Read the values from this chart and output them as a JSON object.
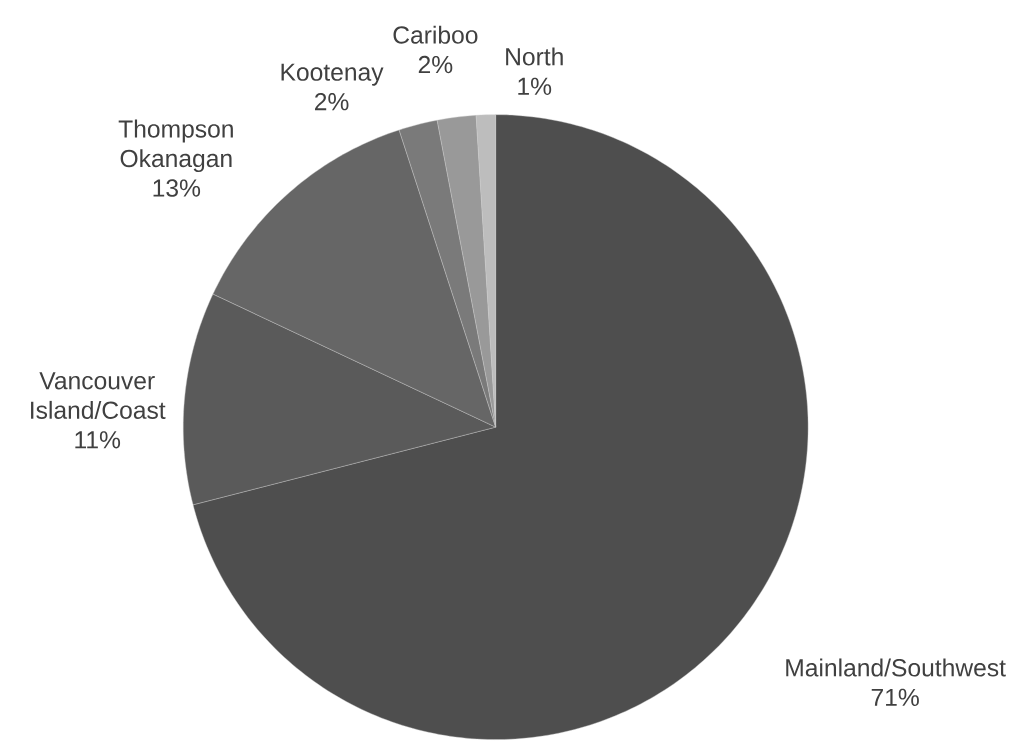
{
  "chart_data": {
    "type": "pie",
    "categories": [
      "Mainland/Southwest",
      "Vancouver Island/Coast",
      "Thompson Okanagan",
      "Kootenay",
      "Cariboo",
      "North"
    ],
    "values": [
      71,
      11,
      13,
      2,
      2,
      1
    ],
    "colors": [
      "#4e4e4e",
      "#5a5a5a",
      "#666666",
      "#7a7a7a",
      "#999999",
      "#bdbdbd"
    ],
    "value_labels": [
      "71%",
      "11%",
      "13%",
      "2%",
      "2%",
      "1%"
    ]
  }
}
